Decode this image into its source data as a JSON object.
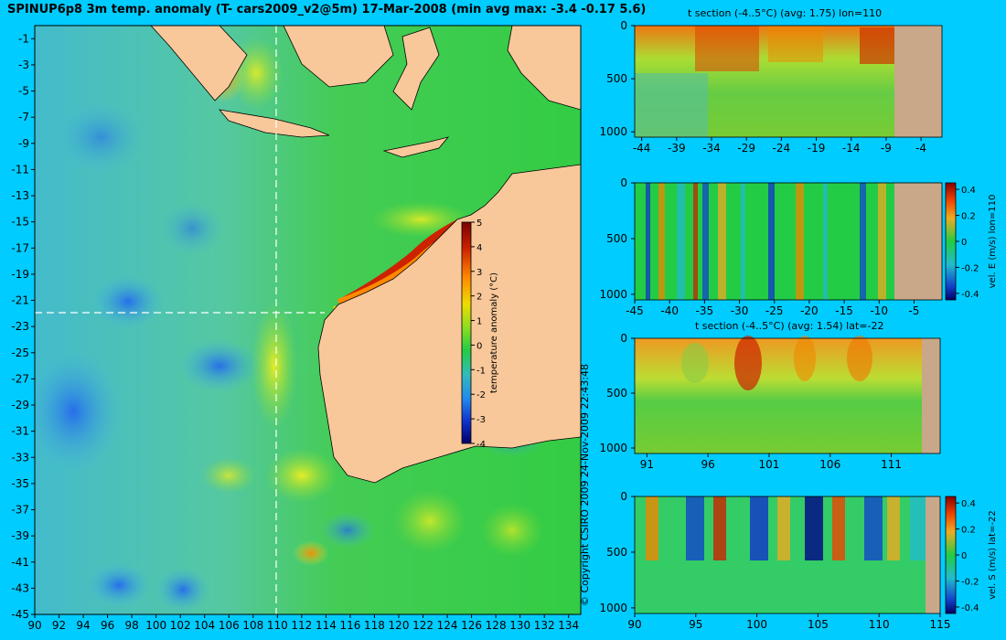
{
  "header": {
    "title": "SPINUP6p8 3m temp. anomaly (T- cars2009_v2@5m) 17-Mar-2008 (min avg max: -3.4 -0.17 5.6)"
  },
  "copyright": "© Copyright CSIRO 2009  24-Nov-2009 22:43:48",
  "colors": {
    "background": "#00ccff",
    "land": "#f9c89a",
    "section_land": "#c8a888"
  },
  "chart_data": [
    {
      "type": "heatmap",
      "id": "map",
      "title": "SPINUP6p8 3m temp. anomaly (T- cars2009_v2@5m) 17-Mar-2008 (min avg max: -3.4 -0.17 5.6)",
      "x_ticks": [
        "90",
        "92",
        "94",
        "96",
        "98",
        "100",
        "102",
        "104",
        "106",
        "108",
        "110",
        "112",
        "114",
        "116",
        "118",
        "120",
        "122",
        "124",
        "126",
        "128",
        "130",
        "132",
        "134"
      ],
      "y_ticks": [
        "-1",
        "-3",
        "-5",
        "-7",
        "-9",
        "-11",
        "-13",
        "-15",
        "-17",
        "-19",
        "-21",
        "-23",
        "-25",
        "-27",
        "-29",
        "-31",
        "-33",
        "-35",
        "-37",
        "-39",
        "-41",
        "-43",
        "-45"
      ],
      "xlim": [
        90,
        135
      ],
      "ylim": [
        -45,
        0
      ],
      "section_lon": 110,
      "section_lat": -22,
      "colorbar": {
        "label": "temperature anomaly (°C)",
        "ticks": [
          "5",
          "4",
          "3",
          "2",
          "1",
          "0",
          "-1",
          "-2",
          "-3",
          "-4"
        ],
        "range": [
          -4,
          5
        ]
      }
    },
    {
      "type": "heatmap",
      "id": "t-section-lon",
      "title": "t section (-4..5°C) (avg: 1.75) lon=110",
      "x_ticks": [
        "-44",
        "-39",
        "-34",
        "-29",
        "-24",
        "-19",
        "-14",
        "-9",
        "-4"
      ],
      "y_ticks": [
        "0",
        "500",
        "1000"
      ],
      "xlim": [
        -45,
        -1
      ],
      "ylim": [
        1050,
        0
      ]
    },
    {
      "type": "heatmap",
      "id": "vel-e-section",
      "title": "",
      "x_ticks": [
        "-45",
        "-40",
        "-35",
        "-30",
        "-25",
        "-20",
        "-15",
        "-10",
        "-5"
      ],
      "y_ticks": [
        "0",
        "500",
        "1000"
      ],
      "xlim": [
        -45,
        -1
      ],
      "ylim": [
        1050,
        0
      ],
      "colorbar": {
        "label": "vel. E (m/s) lon=110",
        "ticks": [
          "0.4",
          "0.2",
          "0",
          "-0.2",
          "-0.4"
        ],
        "range": [
          -0.45,
          0.45
        ]
      }
    },
    {
      "type": "heatmap",
      "id": "t-section-lat",
      "title": "t section (-4..5°C) (avg: 1.54) lat=-22",
      "x_ticks": [
        "91",
        "96",
        "101",
        "106",
        "111"
      ],
      "y_ticks": [
        "0",
        "500",
        "1000"
      ],
      "xlim": [
        90,
        115
      ],
      "ylim": [
        1050,
        0
      ]
    },
    {
      "type": "heatmap",
      "id": "vel-s-section",
      "title": "",
      "x_ticks": [
        "90",
        "95",
        "100",
        "105",
        "110",
        "115"
      ],
      "y_ticks": [
        "0",
        "500",
        "1000"
      ],
      "xlim": [
        90,
        115
      ],
      "ylim": [
        1050,
        0
      ],
      "colorbar": {
        "label": "vel. S (m/s) lat=-22",
        "ticks": [
          "0.4",
          "0.2",
          "0",
          "-0.2",
          "-0.4"
        ],
        "range": [
          -0.45,
          0.45
        ]
      }
    }
  ]
}
